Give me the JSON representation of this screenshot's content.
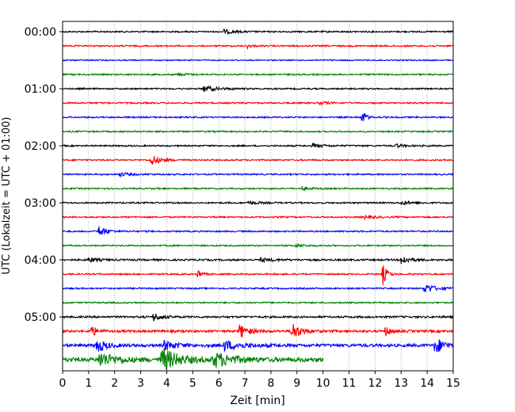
{
  "chart_data": {
    "type": "line",
    "title": "",
    "xlabel": "Zeit  [min]",
    "ylabel": "UTC (Lokalzeit = UTC + 01:00)",
    "xlim": [
      0,
      15
    ],
    "xticks": [
      "0",
      "1",
      "2",
      "3",
      "4",
      "5",
      "6",
      "7",
      "8",
      "9",
      "10",
      "11",
      "12",
      "13",
      "14",
      "15"
    ],
    "yticks": [
      "00:00",
      "01:00",
      "02:00",
      "03:00",
      "04:00",
      "05:00"
    ],
    "grid": "vertical dotted",
    "legend": "none",
    "colors": [
      "#000000",
      "#ff0000",
      "#0000ff",
      "#008000"
    ],
    "trace_interval_min": 15,
    "traces": [
      {
        "row": 0,
        "color": "#000000",
        "end": 15,
        "noise": 1.0,
        "events": [
          {
            "t": 6.2,
            "a": 2.5,
            "w": 0.4
          }
        ]
      },
      {
        "row": 1,
        "color": "#ff0000",
        "end": 15,
        "noise": 1.0,
        "events": [
          {
            "t": 7.1,
            "a": 2.5,
            "w": 0.15
          }
        ]
      },
      {
        "row": 2,
        "color": "#0000ff",
        "end": 15,
        "noise": 0.8,
        "events": []
      },
      {
        "row": 3,
        "color": "#008000",
        "end": 15,
        "noise": 1.0,
        "events": [
          {
            "t": 4.4,
            "a": 1.5,
            "w": 0.3
          }
        ]
      },
      {
        "row": 4,
        "color": "#000000",
        "end": 15,
        "noise": 1.0,
        "events": [
          {
            "t": 5.4,
            "a": 3.5,
            "w": 0.5
          }
        ]
      },
      {
        "row": 5,
        "color": "#ff0000",
        "end": 15,
        "noise": 1.0,
        "events": [
          {
            "t": 9.9,
            "a": 1.8,
            "w": 0.3
          }
        ]
      },
      {
        "row": 6,
        "color": "#0000ff",
        "end": 15,
        "noise": 1.0,
        "events": [
          {
            "t": 11.5,
            "a": 11,
            "w": 0.12
          }
        ]
      },
      {
        "row": 7,
        "color": "#008000",
        "end": 15,
        "noise": 1.0,
        "events": []
      },
      {
        "row": 8,
        "color": "#000000",
        "end": 15,
        "noise": 1.0,
        "events": [
          {
            "t": 9.6,
            "a": 2.5,
            "w": 0.4
          },
          {
            "t": 12.8,
            "a": 2,
            "w": 0.3
          }
        ]
      },
      {
        "row": 9,
        "color": "#ff0000",
        "end": 15,
        "noise": 1.0,
        "events": [
          {
            "t": 3.4,
            "a": 7,
            "w": 0.3
          }
        ]
      },
      {
        "row": 10,
        "color": "#0000ff",
        "end": 15,
        "noise": 1.0,
        "events": [
          {
            "t": 2.2,
            "a": 2.2,
            "w": 0.4
          }
        ]
      },
      {
        "row": 11,
        "color": "#008000",
        "end": 15,
        "noise": 1.0,
        "events": [
          {
            "t": 9.2,
            "a": 1.8,
            "w": 0.3
          }
        ]
      },
      {
        "row": 12,
        "color": "#000000",
        "end": 15,
        "noise": 1.0,
        "events": [
          {
            "t": 7.1,
            "a": 2,
            "w": 0.4
          },
          {
            "t": 13.0,
            "a": 2,
            "w": 0.4
          }
        ]
      },
      {
        "row": 13,
        "color": "#ff0000",
        "end": 15,
        "noise": 1.0,
        "events": [
          {
            "t": 11.6,
            "a": 2,
            "w": 0.4
          }
        ]
      },
      {
        "row": 14,
        "color": "#0000ff",
        "end": 15,
        "noise": 1.0,
        "events": [
          {
            "t": 1.4,
            "a": 7,
            "w": 0.25
          }
        ]
      },
      {
        "row": 15,
        "color": "#008000",
        "end": 15,
        "noise": 1.0,
        "events": [
          {
            "t": 8.9,
            "a": 2,
            "w": 0.4
          }
        ]
      },
      {
        "row": 16,
        "color": "#000000",
        "end": 15,
        "noise": 1.2,
        "events": [
          {
            "t": 1.0,
            "a": 3,
            "w": 0.3
          },
          {
            "t": 7.6,
            "a": 2,
            "w": 0.5
          },
          {
            "t": 13.0,
            "a": 6,
            "w": 0.3
          }
        ]
      },
      {
        "row": 17,
        "color": "#ff0000",
        "end": 15,
        "noise": 1.0,
        "events": [
          {
            "t": 5.2,
            "a": 6,
            "w": 0.12
          },
          {
            "t": 12.3,
            "a": 13,
            "w": 0.15
          }
        ]
      },
      {
        "row": 18,
        "color": "#0000ff",
        "end": 15,
        "noise": 1.0,
        "events": [
          {
            "t": 13.9,
            "a": 6,
            "w": 0.4
          }
        ]
      },
      {
        "row": 19,
        "color": "#008000",
        "end": 15,
        "noise": 1.0,
        "events": []
      },
      {
        "row": 20,
        "color": "#000000",
        "end": 15,
        "noise": 1.3,
        "events": [
          {
            "t": 3.5,
            "a": 5,
            "w": 0.3
          }
        ]
      },
      {
        "row": 21,
        "color": "#ff0000",
        "end": 15,
        "noise": 1.6,
        "events": [
          {
            "t": 1.1,
            "a": 7,
            "w": 0.2
          },
          {
            "t": 6.8,
            "a": 9,
            "w": 0.3
          },
          {
            "t": 8.8,
            "a": 12,
            "w": 0.3
          },
          {
            "t": 12.4,
            "a": 6,
            "w": 0.2
          }
        ]
      },
      {
        "row": 22,
        "color": "#0000ff",
        "end": 15,
        "noise": 2.0,
        "events": [
          {
            "t": 1.3,
            "a": 9,
            "w": 0.3
          },
          {
            "t": 3.9,
            "a": 6,
            "w": 0.4
          },
          {
            "t": 6.2,
            "a": 6,
            "w": 0.6
          },
          {
            "t": 14.3,
            "a": 11,
            "w": 0.3
          }
        ]
      },
      {
        "row": 23,
        "color": "#008000",
        "end": 10,
        "noise": 2.8,
        "events": [
          {
            "t": 1.4,
            "a": 9,
            "w": 0.6
          },
          {
            "t": 3.8,
            "a": 15,
            "w": 0.6
          },
          {
            "t": 5.8,
            "a": 9,
            "w": 0.7
          }
        ]
      }
    ]
  }
}
